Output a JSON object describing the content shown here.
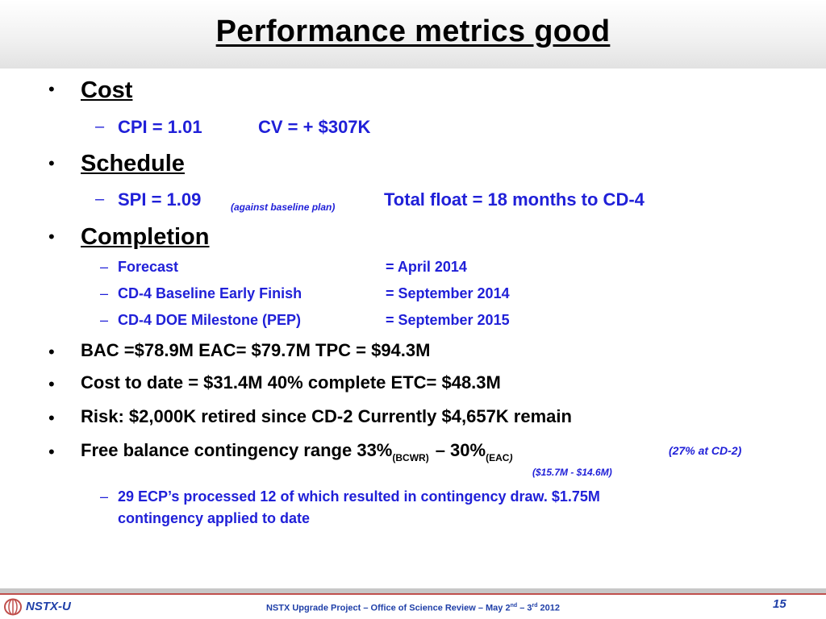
{
  "title": "Performance metrics good",
  "cost": {
    "heading": "Cost",
    "cpi": "CPI = 1.01",
    "cv": "CV = + $307K"
  },
  "schedule": {
    "heading": "Schedule",
    "spi": "SPI = 1.09",
    "spi_note": "(against baseline plan)",
    "float": "Total float = 18 months to CD-4"
  },
  "completion": {
    "heading": "Completion",
    "items": [
      {
        "label": "Forecast",
        "value": "= April 2014"
      },
      {
        "label": "CD-4 Baseline Early Finish",
        "value": "= September 2014"
      },
      {
        "label": "CD-4 DOE Milestone (PEP)",
        "value": "= September 2015"
      }
    ]
  },
  "bullets": {
    "bac": "BAC =$78.9M  EAC= $79.7M  TPC = $94.3M",
    "cost_to_date": "Cost to date = $31.4M  40% complete ETC= $48.3M",
    "risk": "Risk:  $2,000K retired since  CD-2  Currently $4,657K remain"
  },
  "contingency": {
    "text_a": "Free balance contingency range 33%",
    "sub_a": "(BCWR)",
    "dash": "–   30%",
    "sub_b": "(EAC",
    "sub_b_close": ")",
    "note": "(27% at CD-2)",
    "dollars": "($15.7M   - $14.6M)",
    "ecp_line1": "29 ECP’s processed 12 of which resulted in contingency draw. $1.75M",
    "ecp_line2": "contingency applied to date"
  },
  "footer": {
    "logo_text": "NSTX-U",
    "center_a": "NSTX Upgrade Project – Office of Science Review – May  2",
    "center_sup_a": "nd",
    "center_b": " – 3",
    "center_sup_b": "rd",
    "center_c": "  2012",
    "page": "15"
  },
  "colors": {
    "accent_blue": "#2020d8",
    "footer_blue": "#1f3fa8",
    "footer_red": "#c0504d"
  }
}
